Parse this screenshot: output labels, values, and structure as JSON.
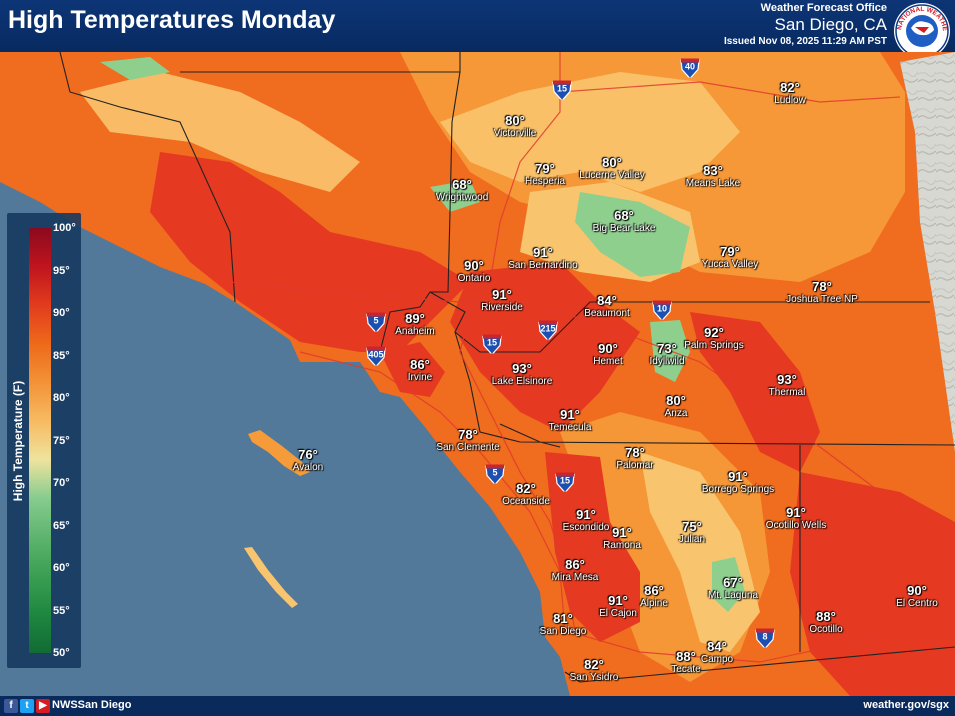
{
  "header": {
    "title": "High Temperatures Monday",
    "office_line": "Weather Forecast Office",
    "office_name": "San Diego, CA",
    "issued": "Issued Nov 08, 2025 11:29 AM PST",
    "logo_text": "NATIONAL WEATHER SERVICE",
    "logo_icon": "nws-logo-icon"
  },
  "legend": {
    "title": "High Temperature (F)",
    "ticks": [
      "100°",
      "95°",
      "90°",
      "85°",
      "80°",
      "75°",
      "70°",
      "65°",
      "60°",
      "55°",
      "50°"
    ],
    "colors": [
      "#8b0a1e",
      "#c0141e",
      "#e23c1e",
      "#ee6a1a",
      "#f39238",
      "#f7bb62",
      "#eee39e",
      "#86cc8e",
      "#5eb46e",
      "#3a9f52",
      "#1e8740",
      "#126b34"
    ]
  },
  "map": {
    "ocean_color": "#52799a",
    "land_colors": {
      "hot": "#e53a21",
      "warm": "#f06c1e",
      "mild": "#f59b3a",
      "cool": "#f9c46e",
      "cold": "#8ecf8e"
    },
    "cities": [
      {
        "name": "Victorville",
        "temp": "80°"
      },
      {
        "name": "Hesperia",
        "temp": "79°"
      },
      {
        "name": "Lucerne Valley",
        "temp": "80°"
      },
      {
        "name": "Means Lake",
        "temp": "83°"
      },
      {
        "name": "Ludlow",
        "temp": "82°"
      },
      {
        "name": "Wrightwood",
        "temp": "68°"
      },
      {
        "name": "Big Bear Lake",
        "temp": "68°"
      },
      {
        "name": "Yucca Valley",
        "temp": "79°"
      },
      {
        "name": "San Bernardino",
        "temp": "91°"
      },
      {
        "name": "Ontario",
        "temp": "90°"
      },
      {
        "name": "Riverside",
        "temp": "91°"
      },
      {
        "name": "Beaumont",
        "temp": "84°"
      },
      {
        "name": "Joshua Tree NP",
        "temp": "78°"
      },
      {
        "name": "Anaheim",
        "temp": "89°"
      },
      {
        "name": "Palm Springs",
        "temp": "92°"
      },
      {
        "name": "Irvine",
        "temp": "86°"
      },
      {
        "name": "Hemet",
        "temp": "90°"
      },
      {
        "name": "Idyllwild",
        "temp": "73°"
      },
      {
        "name": "Lake Elsinore",
        "temp": "93°"
      },
      {
        "name": "Thermal",
        "temp": "93°"
      },
      {
        "name": "Anza",
        "temp": "80°"
      },
      {
        "name": "Temecula",
        "temp": "91°"
      },
      {
        "name": "San Clemente",
        "temp": "78°"
      },
      {
        "name": "Avalon",
        "temp": "76°"
      },
      {
        "name": "Palomar",
        "temp": "78°"
      },
      {
        "name": "Borrego Springs",
        "temp": "91°"
      },
      {
        "name": "Oceanside",
        "temp": "82°"
      },
      {
        "name": "Ocotillo Wells",
        "temp": "91°"
      },
      {
        "name": "Escondido",
        "temp": "91°"
      },
      {
        "name": "Ramona",
        "temp": "91°"
      },
      {
        "name": "Julian",
        "temp": "75°"
      },
      {
        "name": "Mira Mesa",
        "temp": "86°"
      },
      {
        "name": "Mt. Laguna",
        "temp": "67°"
      },
      {
        "name": "El Centro",
        "temp": "90°"
      },
      {
        "name": "Alpine",
        "temp": "86°"
      },
      {
        "name": "El Cajon",
        "temp": "91°"
      },
      {
        "name": "Ocotillo",
        "temp": "88°"
      },
      {
        "name": "San Diego",
        "temp": "81°"
      },
      {
        "name": "Campo",
        "temp": "84°"
      },
      {
        "name": "Tecate",
        "temp": "88°"
      },
      {
        "name": "San Ysidro",
        "temp": "82°"
      }
    ],
    "interstates": [
      {
        "number": "40",
        "style": "blue"
      },
      {
        "number": "15",
        "style": "blue"
      },
      {
        "number": "10",
        "style": "blue"
      },
      {
        "number": "215",
        "style": "blue"
      },
      {
        "number": "5",
        "style": "blue"
      },
      {
        "number": "405",
        "style": "blue"
      },
      {
        "number": "15",
        "style": "blue"
      },
      {
        "number": "5",
        "style": "blue"
      },
      {
        "number": "15",
        "style": "blue"
      },
      {
        "number": "8",
        "style": "blue"
      }
    ]
  },
  "footer": {
    "icons": [
      "facebook-icon",
      "twitter-icon",
      "youtube-icon"
    ],
    "handle": "NWSSan Diego",
    "website": "weather.gov/sgx"
  }
}
